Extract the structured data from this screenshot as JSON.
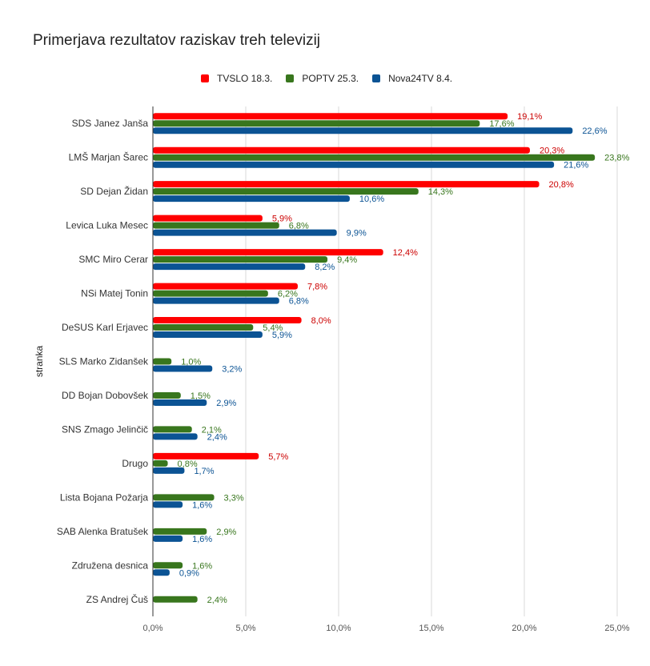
{
  "chart_data": {
    "type": "bar",
    "orientation": "horizontal",
    "title": "Primerjava rezultatov raziskav treh televizij",
    "xlabel": "",
    "ylabel": "stranka",
    "xlim": [
      0,
      25
    ],
    "x_ticks": [
      0,
      5,
      10,
      15,
      20,
      25
    ],
    "x_tick_labels": [
      "0,0%",
      "5,0%",
      "10,0%",
      "15,0%",
      "20,0%",
      "25,0%"
    ],
    "grid": true,
    "legend_position": "top-center",
    "categories": [
      "SDS Janez Janša",
      "LMŠ Marjan Šarec",
      "SD Dejan Židan",
      "Levica Luka Mesec",
      "SMC Miro Cerar",
      "NSi Matej Tonin",
      "DeSUS Karl Erjavec",
      "SLS Marko Zidanšek",
      "DD Bojan Dobovšek",
      "SNS Zmago Jelinčič",
      "Drugo",
      "Lista Bojana Požarja",
      "SAB Alenka Bratušek",
      "Združena desnica",
      "ZS Andrej Čuš"
    ],
    "series": [
      {
        "name": "TVSLO 18.3.",
        "color": "#ff0000",
        "label_color": "#cc0000",
        "values": [
          19.1,
          20.3,
          20.8,
          5.9,
          12.4,
          7.8,
          8.0,
          null,
          null,
          null,
          5.7,
          null,
          null,
          null,
          null
        ],
        "labels": [
          "19,1%",
          "20,3%",
          "20,8%",
          "5,9%",
          "12,4%",
          "7,8%",
          "8,0%",
          null,
          null,
          null,
          "5,7%",
          null,
          null,
          null,
          null
        ]
      },
      {
        "name": "POPTV 25.3.",
        "color": "#38761d",
        "label_color": "#38761d",
        "values": [
          17.6,
          23.8,
          14.3,
          6.8,
          9.4,
          6.2,
          5.4,
          1.0,
          1.5,
          2.1,
          0.8,
          3.3,
          2.9,
          1.6,
          2.4
        ],
        "labels": [
          "17,6%",
          "23,8%",
          "14,3%",
          "6,8%",
          "9,4%",
          "6,2%",
          "5,4%",
          "1,0%",
          "1,5%",
          "2,1%",
          "0,8%",
          "3,3%",
          "2,9%",
          "1,6%",
          "2,4%"
        ]
      },
      {
        "name": "Nova24TV 8.4.",
        "color": "#0b5394",
        "label_color": "#0b5394",
        "values": [
          22.6,
          21.6,
          10.6,
          9.9,
          8.2,
          6.8,
          5.9,
          3.2,
          2.9,
          2.4,
          1.7,
          1.6,
          1.6,
          0.9,
          null
        ],
        "labels": [
          "22,6%",
          "21,6%",
          "10,6%",
          "9,9%",
          "8,2%",
          "6,8%",
          "5,9%",
          "3,2%",
          "2,9%",
          "2,4%",
          "1,7%",
          "1,6%",
          "1,6%",
          "0,9%",
          null
        ]
      }
    ]
  }
}
